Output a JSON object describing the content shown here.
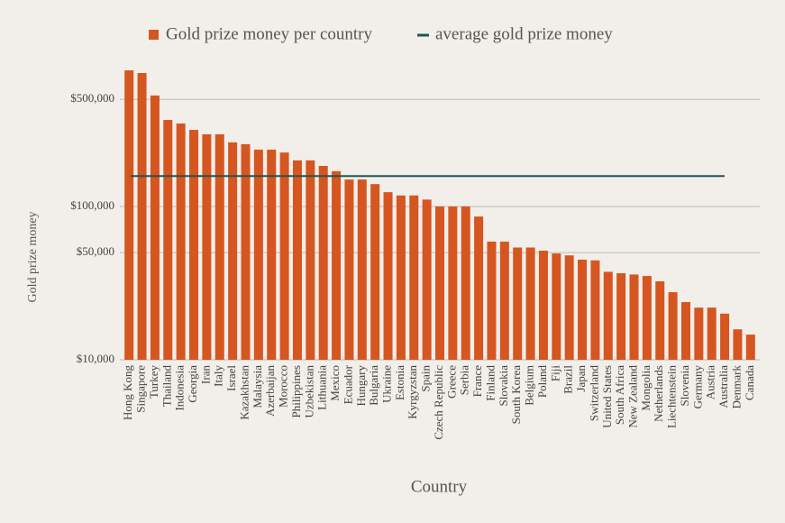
{
  "chart_data": {
    "type": "bar",
    "x_label": "Country",
    "y_label": "Gold prize money",
    "log_scale": true,
    "grid": true,
    "categories": [
      "Hong Kong",
      "Singapore",
      "Turkey",
      "Thailand",
      "Indonesia",
      "Georgia",
      "Iran",
      "Italy",
      "Israel",
      "Kazakhstan",
      "Malaysia",
      "Azerbaijan",
      "Morocco",
      "Philippines",
      "Uzbekistan",
      "Lithuania",
      "Mexico",
      "Ecuador",
      "Hungary",
      "Bulgaria",
      "Ukraine",
      "Estonia",
      "Kyrgyzstan",
      "Spain",
      "Czech Republic",
      "Greece",
      "Serbia",
      "France",
      "Finland",
      "Slovakia",
      "South Korea",
      "Belgium",
      "Poland",
      "Fiji",
      "Brazil",
      "Japan",
      "Switzerland",
      "United States",
      "South Africa",
      "New Zealand",
      "Mongolia",
      "Netherlands",
      "Liechtenstein",
      "Slovenia",
      "Germany",
      "Austria",
      "Australia",
      "Denmark",
      "Canada"
    ],
    "series": [
      {
        "name": "Gold prize money per country",
        "color": "#d55621",
        "values": [
          773000,
          743000,
          530000,
          367000,
          348000,
          316000,
          296000,
          296000,
          262000,
          255000,
          235000,
          235000,
          225000,
          200000,
          200000,
          184000,
          170000,
          150000,
          150000,
          140000,
          124000,
          118000,
          118000,
          111000,
          100000,
          100000,
          100000,
          86000,
          59000,
          59000,
          54000,
          54000,
          51500,
          49400,
          48000,
          45000,
          44500,
          37500,
          36700,
          36000,
          35200,
          32500,
          27600,
          23800,
          21900,
          21900,
          20000,
          15800,
          14600
        ]
      }
    ],
    "reference_line": {
      "name": "average gold prize money",
      "color": "#1e5656",
      "value": 158000
    },
    "ylim": [
      10000,
      800000
    ],
    "yticks": [
      {
        "value": 10000,
        "label": "$10,000"
      },
      {
        "value": 50000,
        "label": "$50,000"
      },
      {
        "value": 100000,
        "label": "$100,000"
      },
      {
        "value": 500000,
        "label": "$500,000"
      }
    ]
  }
}
